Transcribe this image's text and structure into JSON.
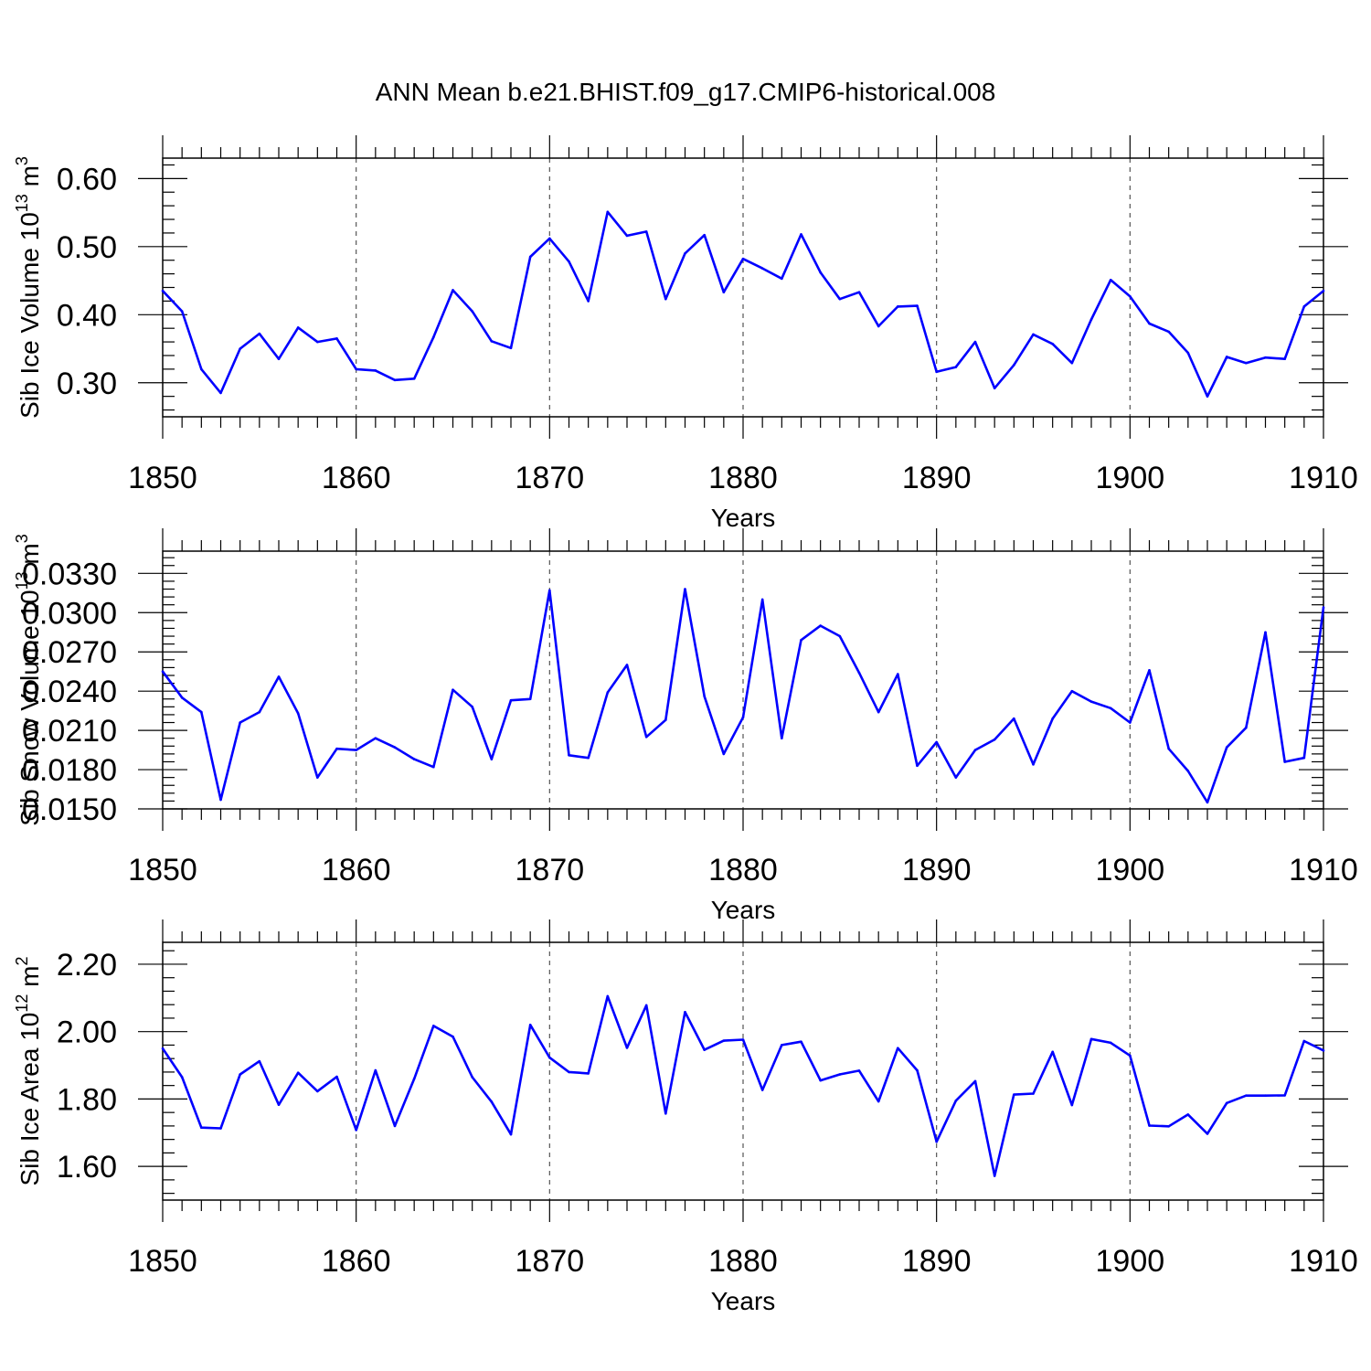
{
  "figure": {
    "title": "ANN Mean b.e21.BHIST.f09_g17.CMIP6-historical.008"
  },
  "colors": {
    "series": "#0000ff",
    "axes": "#000000",
    "grid": "#555555"
  },
  "chart_data": [
    {
      "type": "line",
      "title": "",
      "xlabel": "Years",
      "ylabel": "Sib Ice Volume 10",
      "ylabel_sup": "13",
      "ylabel_unit": " m",
      "ylabel_unit_sup": "3",
      "xlim": [
        1850,
        1910
      ],
      "ylim": [
        0.25,
        0.63
      ],
      "xticks": [
        1850,
        1860,
        1870,
        1880,
        1890,
        1900,
        1910
      ],
      "yticks": [
        "0.30",
        "0.40",
        "0.50",
        "0.60"
      ],
      "grid_x": [
        1860,
        1870,
        1880,
        1890,
        1900
      ],
      "series": [
        {
          "name": "Sib Ice Volume",
          "x_start": 1850,
          "values": [
            0.435,
            0.405,
            0.32,
            0.285,
            0.35,
            0.372,
            0.335,
            0.381,
            0.36,
            0.365,
            0.32,
            0.318,
            0.304,
            0.306,
            0.367,
            0.436,
            0.405,
            0.361,
            0.351,
            0.485,
            0.512,
            0.478,
            0.42,
            0.551,
            0.516,
            0.522,
            0.423,
            0.49,
            0.517,
            0.433,
            0.482,
            0.468,
            0.453,
            0.518,
            0.462,
            0.423,
            0.433,
            0.383,
            0.412,
            0.413,
            0.316,
            0.323,
            0.36,
            0.292,
            0.326,
            0.371,
            0.357,
            0.329,
            0.393,
            0.451,
            0.427,
            0.387,
            0.375,
            0.344,
            0.28,
            0.338,
            0.329,
            0.337,
            0.335,
            0.412,
            0.435
          ]
        }
      ]
    },
    {
      "type": "line",
      "title": "",
      "xlabel": "Years",
      "ylabel": "Sib Snow Volume 10",
      "ylabel_sup": "13",
      "ylabel_unit": " m",
      "ylabel_unit_sup": "3",
      "xlim": [
        1850,
        1910
      ],
      "ylim": [
        0.015,
        0.0347
      ],
      "xticks": [
        1850,
        1860,
        1870,
        1880,
        1890,
        1900,
        1910
      ],
      "yticks": [
        "0.0150",
        "0.0180",
        "0.0210",
        "0.0240",
        "0.0270",
        "0.0300",
        "0.0330"
      ],
      "grid_x": [
        1860,
        1870,
        1880,
        1890,
        1900
      ],
      "series": [
        {
          "name": "Sib Snow Volume",
          "x_start": 1850,
          "values": [
            0.0255,
            0.0235,
            0.0224,
            0.0157,
            0.0216,
            0.0224,
            0.0251,
            0.0223,
            0.0174,
            0.0196,
            0.0195,
            0.0204,
            0.0197,
            0.0188,
            0.0182,
            0.0241,
            0.0228,
            0.0188,
            0.0233,
            0.0234,
            0.0317,
            0.0191,
            0.0189,
            0.0239,
            0.026,
            0.0205,
            0.0218,
            0.0318,
            0.0236,
            0.0192,
            0.022,
            0.031,
            0.0204,
            0.0279,
            0.029,
            0.0282,
            0.0254,
            0.0224,
            0.0253,
            0.0183,
            0.0201,
            0.0174,
            0.0195,
            0.0203,
            0.0219,
            0.0184,
            0.0219,
            0.024,
            0.0232,
            0.0227,
            0.0216,
            0.0256,
            0.0196,
            0.0179,
            0.0155,
            0.0197,
            0.0212,
            0.0285,
            0.0186,
            0.0189,
            0.0304
          ]
        }
      ]
    },
    {
      "type": "line",
      "title": "",
      "xlabel": "Years",
      "ylabel": "Sib Ice Area 10",
      "ylabel_sup": "12",
      "ylabel_unit": " m",
      "ylabel_unit_sup": "2",
      "xlim": [
        1850,
        1910
      ],
      "ylim": [
        1.5,
        2.265
      ],
      "xticks": [
        1850,
        1860,
        1870,
        1880,
        1890,
        1900,
        1910
      ],
      "yticks": [
        "1.60",
        "1.80",
        "2.00",
        "2.20"
      ],
      "grid_x": [
        1860,
        1870,
        1880,
        1890,
        1900
      ],
      "series": [
        {
          "name": "Sib Ice Area",
          "x_start": 1850,
          "values": [
            1.95,
            1.865,
            1.715,
            1.713,
            1.873,
            1.912,
            1.783,
            1.878,
            1.823,
            1.866,
            1.708,
            1.885,
            1.72,
            1.86,
            2.017,
            1.985,
            1.865,
            1.792,
            1.695,
            2.02,
            1.923,
            1.88,
            1.876,
            2.105,
            1.952,
            2.078,
            1.757,
            2.058,
            1.946,
            1.973,
            1.976,
            1.827,
            1.96,
            1.97,
            1.855,
            1.873,
            1.884,
            1.793,
            1.951,
            1.885,
            1.673,
            1.795,
            1.853,
            1.572,
            1.813,
            1.816,
            1.94,
            1.782,
            1.978,
            1.967,
            1.929,
            1.721,
            1.719,
            1.754,
            1.697,
            1.788,
            1.81,
            1.81,
            1.811,
            1.972,
            1.944
          ]
        }
      ]
    }
  ]
}
